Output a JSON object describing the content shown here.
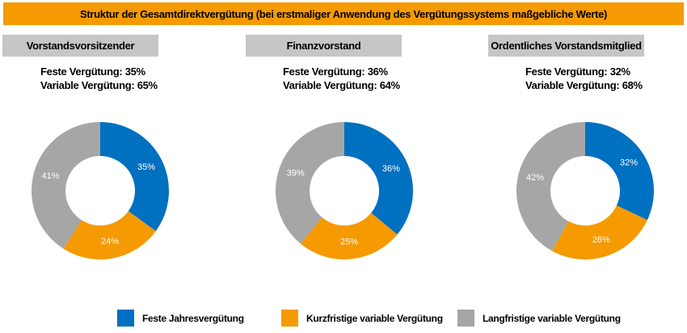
{
  "header": {
    "title": "Struktur der Gesamtdirektvergütung (bei erstmaliger Anwendung des Vergütungssystems maßgebliche Werte)"
  },
  "colors": {
    "feste": "#0070c0",
    "kurz": "#f59a00",
    "lang": "#a6a6a6",
    "header_bg": "#f59a00",
    "panel_bg": "#c6c6c6"
  },
  "panels": [
    {
      "title": "Vorstandsvorsitzender",
      "feste_line": "Feste Vergütung: 35%",
      "variable_line": "Variable Vergütung: 65%"
    },
    {
      "title": "Finanzvorstand",
      "feste_line": "Feste Vergütung: 36%",
      "variable_line": "Variable Vergütung: 64%"
    },
    {
      "title": "Ordentliches Vorstandsmitglied",
      "feste_line": "Feste Vergütung: 32%",
      "variable_line": "Variable Vergütung: 68%"
    }
  ],
  "legend": [
    {
      "label": "Feste Jahresvergütung",
      "color": "#0070c0"
    },
    {
      "label": "Kurzfristige variable Vergütung",
      "color": "#f59a00"
    },
    {
      "label": "Langfristige variable Vergütung",
      "color": "#a6a6a6"
    }
  ],
  "chart_data": [
    {
      "type": "pie",
      "title": "Vorstandsvorsitzender",
      "categories": [
        "Feste Jahresvergütung",
        "Kurzfristige variable Vergütung",
        "Langfristige variable Vergütung"
      ],
      "values": [
        35,
        24,
        41
      ],
      "labels": [
        "35%",
        "24%",
        "41%"
      ],
      "colors": [
        "#0070c0",
        "#f59a00",
        "#a6a6a6"
      ]
    },
    {
      "type": "pie",
      "title": "Finanzvorstand",
      "categories": [
        "Feste Jahresvergütung",
        "Kurzfristige variable Vergütung",
        "Langfristige variable Vergütung"
      ],
      "values": [
        36,
        25,
        39
      ],
      "labels": [
        "36%",
        "25%",
        "39%"
      ],
      "colors": [
        "#0070c0",
        "#f59a00",
        "#a6a6a6"
      ]
    },
    {
      "type": "pie",
      "title": "Ordentliches Vorstandsmitglied",
      "categories": [
        "Feste Jahresvergütung",
        "Kurzfristige variable Vergütung",
        "Langfristige variable Vergütung"
      ],
      "values": [
        32,
        26,
        42
      ],
      "labels": [
        "32%",
        "26%",
        "42%"
      ],
      "colors": [
        "#0070c0",
        "#f59a00",
        "#a6a6a6"
      ]
    }
  ]
}
